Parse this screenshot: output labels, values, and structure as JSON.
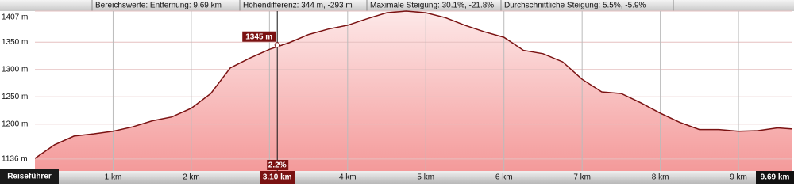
{
  "header": {
    "segments": [
      "Bereichswerte: Entfernung: 9.69 km",
      "Höhendifferenz: 344 m, -293 m",
      "Maximale Steigung: 30.1%, -21.8%",
      "Durchschnittliche Steigung: 5.5%, -5.9%"
    ]
  },
  "button": "Reiseführer",
  "chart_data": {
    "type": "area",
    "x": [
      0,
      0.25,
      0.5,
      0.75,
      1,
      1.25,
      1.5,
      1.75,
      2,
      2.25,
      2.5,
      2.75,
      3,
      3.25,
      3.5,
      3.75,
      4,
      4.25,
      4.5,
      4.75,
      5,
      5.25,
      5.5,
      5.75,
      6,
      6.25,
      6.5,
      6.75,
      7,
      7.25,
      7.5,
      7.75,
      8,
      8.25,
      8.5,
      8.75,
      9,
      9.25,
      9.5,
      9.69
    ],
    "values": [
      1137,
      1162,
      1178,
      1182,
      1187,
      1195,
      1206,
      1213,
      1229,
      1256,
      1303,
      1321,
      1337,
      1349,
      1364,
      1374,
      1381,
      1393,
      1404,
      1407,
      1404,
      1395,
      1381,
      1369,
      1359,
      1335,
      1329,
      1314,
      1282,
      1259,
      1256,
      1239,
      1220,
      1203,
      1190,
      1190,
      1187,
      1188,
      1193,
      1191
    ],
    "xlim": [
      0,
      9.69
    ],
    "ylim": [
      1114,
      1407
    ],
    "xticks": [
      {
        "value": 1,
        "label": "1 km"
      },
      {
        "value": 2,
        "label": "2 km"
      },
      {
        "value": 3,
        "label": "3 km"
      },
      {
        "value": 4,
        "label": "4 km"
      },
      {
        "value": 5,
        "label": "5 km"
      },
      {
        "value": 6,
        "label": "6 km"
      },
      {
        "value": 7,
        "label": "7 km"
      },
      {
        "value": 8,
        "label": "8 km"
      },
      {
        "value": 9,
        "label": "9 km"
      },
      {
        "value": 9.69,
        "label": "9.69 km"
      }
    ],
    "yticks": [
      {
        "value": 1136,
        "label": "1136 m"
      },
      {
        "value": 1200,
        "label": "1200 m"
      },
      {
        "value": 1250,
        "label": "1250 m"
      },
      {
        "value": 1300,
        "label": "1300 m"
      },
      {
        "value": 1350,
        "label": "1350 m"
      },
      {
        "value": 1407,
        "label": "1407 m"
      }
    ],
    "grid": true,
    "color": "#7a1212",
    "fill": "#f7a8a8",
    "cursor": {
      "x": 3.1,
      "x_label": "3.10 km",
      "elevation": 1345,
      "elevation_label": "1345 m",
      "slope_label": "2.2%"
    }
  }
}
